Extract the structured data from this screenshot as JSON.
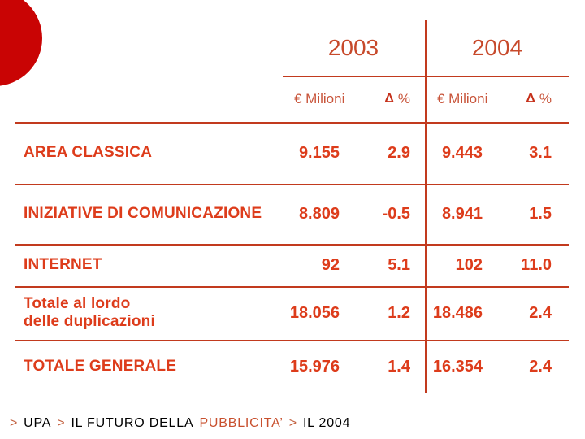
{
  "slide": {
    "background_color": "#FFFFFF",
    "circle_color": "#C90404",
    "table_text_color": "#DD3C1B",
    "line_color": "#C23A1E"
  },
  "table": {
    "years": [
      "2003",
      "2004"
    ],
    "column_headers": {
      "amount": "€ Milioni",
      "delta_symbol": "Δ",
      "delta_unit": "%"
    },
    "rows": [
      {
        "label": "AREA CLASSICA",
        "values": [
          "9.155",
          "2.9",
          "9.443",
          "3.1"
        ]
      },
      {
        "label": "INIZIATIVE DI COMUNICAZIONE",
        "values": [
          "8.809",
          "-0.5",
          "8.941",
          "1.5"
        ]
      },
      {
        "label": "INTERNET",
        "values": [
          "92",
          "5.1",
          "102",
          "11.0"
        ]
      },
      {
        "label": "Totale al lordo",
        "label_line2": "delle duplicazioni",
        "values": [
          "18.056",
          "1.2",
          "18.486",
          "2.4"
        ]
      },
      {
        "label": "TOTALE GENERALE",
        "values": [
          "15.976",
          "1.4",
          "16.354",
          "2.4"
        ]
      }
    ]
  },
  "footer": {
    "separator": ">",
    "part1": "UPA",
    "part2": "IL FUTURO DELLA",
    "part3": "PUBBLICITA’",
    "part4": "IL 2004"
  }
}
